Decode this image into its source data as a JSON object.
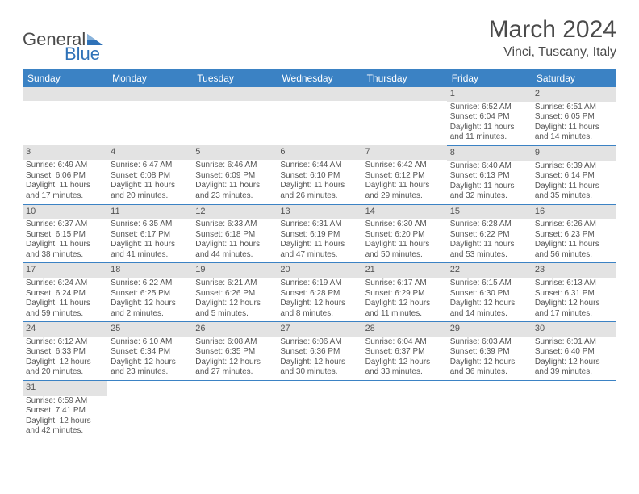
{
  "logo": {
    "text_general": "General",
    "text_blue": "Blue"
  },
  "title": "March 2024",
  "location": "Vinci, Tuscany, Italy",
  "colors": {
    "header_bg": "#3b82c4",
    "header_fg": "#ffffff",
    "daynum_bg": "#e3e3e3",
    "border": "#3b82c4",
    "text": "#555555",
    "logo_blue": "#2f72b8",
    "logo_gray": "#4a4a4a"
  },
  "weekdays": [
    "Sunday",
    "Monday",
    "Tuesday",
    "Wednesday",
    "Thursday",
    "Friday",
    "Saturday"
  ],
  "weeks": [
    [
      null,
      null,
      null,
      null,
      null,
      {
        "num": "1",
        "sunrise": "Sunrise: 6:52 AM",
        "sunset": "Sunset: 6:04 PM",
        "daylight": "Daylight: 11 hours and 11 minutes."
      },
      {
        "num": "2",
        "sunrise": "Sunrise: 6:51 AM",
        "sunset": "Sunset: 6:05 PM",
        "daylight": "Daylight: 11 hours and 14 minutes."
      }
    ],
    [
      {
        "num": "3",
        "sunrise": "Sunrise: 6:49 AM",
        "sunset": "Sunset: 6:06 PM",
        "daylight": "Daylight: 11 hours and 17 minutes."
      },
      {
        "num": "4",
        "sunrise": "Sunrise: 6:47 AM",
        "sunset": "Sunset: 6:08 PM",
        "daylight": "Daylight: 11 hours and 20 minutes."
      },
      {
        "num": "5",
        "sunrise": "Sunrise: 6:46 AM",
        "sunset": "Sunset: 6:09 PM",
        "daylight": "Daylight: 11 hours and 23 minutes."
      },
      {
        "num": "6",
        "sunrise": "Sunrise: 6:44 AM",
        "sunset": "Sunset: 6:10 PM",
        "daylight": "Daylight: 11 hours and 26 minutes."
      },
      {
        "num": "7",
        "sunrise": "Sunrise: 6:42 AM",
        "sunset": "Sunset: 6:12 PM",
        "daylight": "Daylight: 11 hours and 29 minutes."
      },
      {
        "num": "8",
        "sunrise": "Sunrise: 6:40 AM",
        "sunset": "Sunset: 6:13 PM",
        "daylight": "Daylight: 11 hours and 32 minutes."
      },
      {
        "num": "9",
        "sunrise": "Sunrise: 6:39 AM",
        "sunset": "Sunset: 6:14 PM",
        "daylight": "Daylight: 11 hours and 35 minutes."
      }
    ],
    [
      {
        "num": "10",
        "sunrise": "Sunrise: 6:37 AM",
        "sunset": "Sunset: 6:15 PM",
        "daylight": "Daylight: 11 hours and 38 minutes."
      },
      {
        "num": "11",
        "sunrise": "Sunrise: 6:35 AM",
        "sunset": "Sunset: 6:17 PM",
        "daylight": "Daylight: 11 hours and 41 minutes."
      },
      {
        "num": "12",
        "sunrise": "Sunrise: 6:33 AM",
        "sunset": "Sunset: 6:18 PM",
        "daylight": "Daylight: 11 hours and 44 minutes."
      },
      {
        "num": "13",
        "sunrise": "Sunrise: 6:31 AM",
        "sunset": "Sunset: 6:19 PM",
        "daylight": "Daylight: 11 hours and 47 minutes."
      },
      {
        "num": "14",
        "sunrise": "Sunrise: 6:30 AM",
        "sunset": "Sunset: 6:20 PM",
        "daylight": "Daylight: 11 hours and 50 minutes."
      },
      {
        "num": "15",
        "sunrise": "Sunrise: 6:28 AM",
        "sunset": "Sunset: 6:22 PM",
        "daylight": "Daylight: 11 hours and 53 minutes."
      },
      {
        "num": "16",
        "sunrise": "Sunrise: 6:26 AM",
        "sunset": "Sunset: 6:23 PM",
        "daylight": "Daylight: 11 hours and 56 minutes."
      }
    ],
    [
      {
        "num": "17",
        "sunrise": "Sunrise: 6:24 AM",
        "sunset": "Sunset: 6:24 PM",
        "daylight": "Daylight: 11 hours and 59 minutes."
      },
      {
        "num": "18",
        "sunrise": "Sunrise: 6:22 AM",
        "sunset": "Sunset: 6:25 PM",
        "daylight": "Daylight: 12 hours and 2 minutes."
      },
      {
        "num": "19",
        "sunrise": "Sunrise: 6:21 AM",
        "sunset": "Sunset: 6:26 PM",
        "daylight": "Daylight: 12 hours and 5 minutes."
      },
      {
        "num": "20",
        "sunrise": "Sunrise: 6:19 AM",
        "sunset": "Sunset: 6:28 PM",
        "daylight": "Daylight: 12 hours and 8 minutes."
      },
      {
        "num": "21",
        "sunrise": "Sunrise: 6:17 AM",
        "sunset": "Sunset: 6:29 PM",
        "daylight": "Daylight: 12 hours and 11 minutes."
      },
      {
        "num": "22",
        "sunrise": "Sunrise: 6:15 AM",
        "sunset": "Sunset: 6:30 PM",
        "daylight": "Daylight: 12 hours and 14 minutes."
      },
      {
        "num": "23",
        "sunrise": "Sunrise: 6:13 AM",
        "sunset": "Sunset: 6:31 PM",
        "daylight": "Daylight: 12 hours and 17 minutes."
      }
    ],
    [
      {
        "num": "24",
        "sunrise": "Sunrise: 6:12 AM",
        "sunset": "Sunset: 6:33 PM",
        "daylight": "Daylight: 12 hours and 20 minutes."
      },
      {
        "num": "25",
        "sunrise": "Sunrise: 6:10 AM",
        "sunset": "Sunset: 6:34 PM",
        "daylight": "Daylight: 12 hours and 23 minutes."
      },
      {
        "num": "26",
        "sunrise": "Sunrise: 6:08 AM",
        "sunset": "Sunset: 6:35 PM",
        "daylight": "Daylight: 12 hours and 27 minutes."
      },
      {
        "num": "27",
        "sunrise": "Sunrise: 6:06 AM",
        "sunset": "Sunset: 6:36 PM",
        "daylight": "Daylight: 12 hours and 30 minutes."
      },
      {
        "num": "28",
        "sunrise": "Sunrise: 6:04 AM",
        "sunset": "Sunset: 6:37 PM",
        "daylight": "Daylight: 12 hours and 33 minutes."
      },
      {
        "num": "29",
        "sunrise": "Sunrise: 6:03 AM",
        "sunset": "Sunset: 6:39 PM",
        "daylight": "Daylight: 12 hours and 36 minutes."
      },
      {
        "num": "30",
        "sunrise": "Sunrise: 6:01 AM",
        "sunset": "Sunset: 6:40 PM",
        "daylight": "Daylight: 12 hours and 39 minutes."
      }
    ],
    [
      {
        "num": "31",
        "sunrise": "Sunrise: 6:59 AM",
        "sunset": "Sunset: 7:41 PM",
        "daylight": "Daylight: 12 hours and 42 minutes."
      },
      null,
      null,
      null,
      null,
      null,
      null
    ]
  ]
}
